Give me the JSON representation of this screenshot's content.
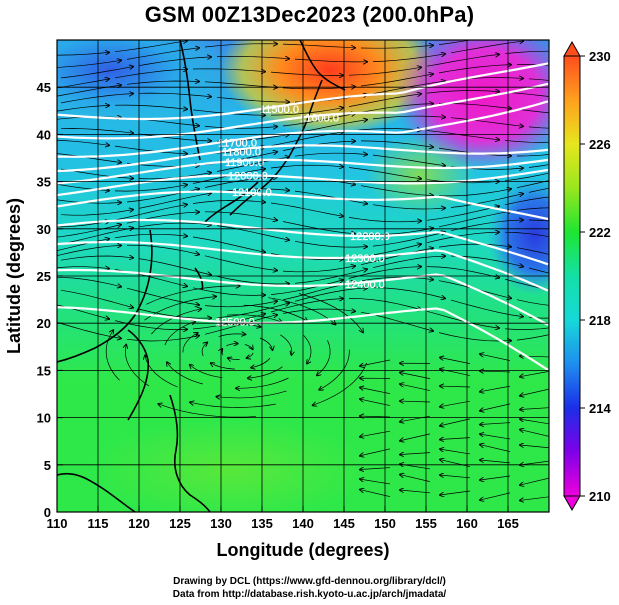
{
  "title": "GSM 00Z13Dec2023 (200.0hPa)",
  "xlabel": "Longitude (degrees)",
  "ylabel": "Latitude (degrees)",
  "x_ticks": [
    110,
    115,
    120,
    125,
    130,
    135,
    140,
    145,
    150,
    155,
    160,
    165
  ],
  "y_ticks": [
    0,
    5,
    10,
    15,
    20,
    25,
    30,
    35,
    40,
    45
  ],
  "colorbar": {
    "ticks": [
      210,
      214,
      218,
      222,
      226,
      230
    ],
    "range": [
      210,
      230
    ],
    "stops": [
      "#ee00dd",
      "#8000e8",
      "#1c2ee8",
      "#1e8ef0",
      "#17d8d8",
      "#14e0a6",
      "#1ee632",
      "#9ae61e",
      "#e6e61e",
      "#ffa01e",
      "#ff4e1e"
    ]
  },
  "contour_labels": [
    "11500.0",
    "11600.0",
    "11700.0",
    "11800.0",
    "11900.0",
    "12000.0",
    "12100.0",
    "12200.0",
    "12300.0",
    "12400.0",
    "12500.0"
  ],
  "credits": [
    "Drawing by DCL (https://www.gfd-dennou.org/library/dcl/)",
    "Data from http://database.rish.kyoto-u.ac.jp/arch/jmadata/"
  ],
  "colors": {
    "field_low_lat": "#2ee84a",
    "field_mid_lat": "#20e0b8",
    "field_cyan": "#22c8e0",
    "field_blue": "#1e5ae8",
    "field_magenta": "#e820c8",
    "field_orange": "#ff7a1e",
    "contour": "#ffffff",
    "streamline": "#000000"
  }
}
